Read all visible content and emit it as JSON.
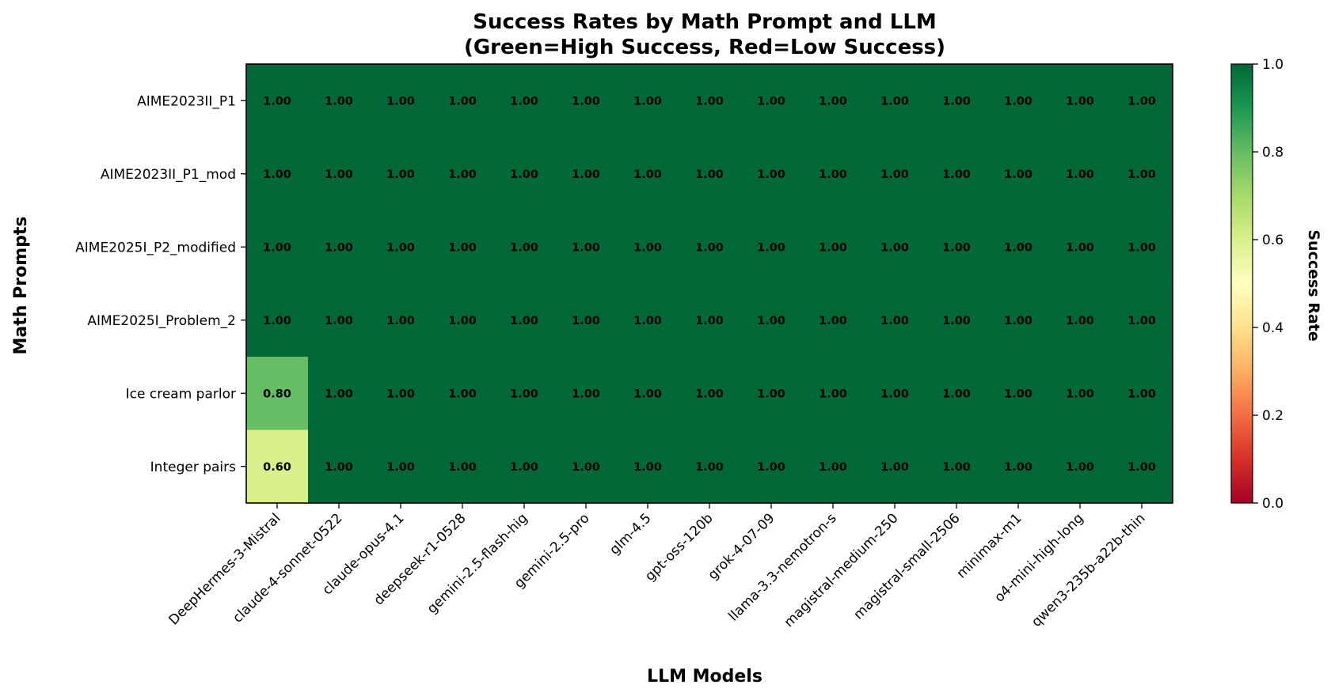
{
  "chart_data": {
    "type": "heatmap",
    "title_line1": "Success Rates by Math Prompt and LLM",
    "title_line2": "(Green=High Success, Red=Low Success)",
    "xlabel": "LLM Models",
    "ylabel": "Math Prompts",
    "x_categories": [
      "DeepHermes-3-Mistral",
      "claude-4-sonnet-0522",
      "claude-opus-4.1",
      "deepseek-r1-0528",
      "gemini-2.5-flash-hig",
      "gemini-2.5-pro",
      "glm-4.5",
      "gpt-oss-120b",
      "grok-4-07-09",
      "llama-3.3-nemotron-s",
      "magistral-medium-250",
      "magistral-small-2506",
      "minimax-m1",
      "o4-mini-high-long",
      "qwen3-235b-a22b-thin"
    ],
    "y_categories": [
      "AIME2023II_P1",
      "AIME2023II_P1_mod",
      "AIME2025I_P2_modified",
      "AIME2025I_Problem_2",
      "Ice cream parlor",
      "Integer pairs"
    ],
    "values": [
      [
        1.0,
        1.0,
        1.0,
        1.0,
        1.0,
        1.0,
        1.0,
        1.0,
        1.0,
        1.0,
        1.0,
        1.0,
        1.0,
        1.0,
        1.0
      ],
      [
        1.0,
        1.0,
        1.0,
        1.0,
        1.0,
        1.0,
        1.0,
        1.0,
        1.0,
        1.0,
        1.0,
        1.0,
        1.0,
        1.0,
        1.0
      ],
      [
        1.0,
        1.0,
        1.0,
        1.0,
        1.0,
        1.0,
        1.0,
        1.0,
        1.0,
        1.0,
        1.0,
        1.0,
        1.0,
        1.0,
        1.0
      ],
      [
        1.0,
        1.0,
        1.0,
        1.0,
        1.0,
        1.0,
        1.0,
        1.0,
        1.0,
        1.0,
        1.0,
        1.0,
        1.0,
        1.0,
        1.0
      ],
      [
        0.8,
        1.0,
        1.0,
        1.0,
        1.0,
        1.0,
        1.0,
        1.0,
        1.0,
        1.0,
        1.0,
        1.0,
        1.0,
        1.0,
        1.0
      ],
      [
        0.6,
        1.0,
        1.0,
        1.0,
        1.0,
        1.0,
        1.0,
        1.0,
        1.0,
        1.0,
        1.0,
        1.0,
        1.0,
        1.0,
        1.0
      ]
    ],
    "value_format_decimals": 2,
    "colormap": "RdYlGn",
    "vmin": 0.0,
    "vmax": 1.0,
    "colorbar": {
      "label": "Success Rate",
      "ticks": [
        "0.0",
        "0.2",
        "0.4",
        "0.6",
        "0.8",
        "1.0"
      ],
      "tick_values": [
        0.0,
        0.2,
        0.4,
        0.6,
        0.8,
        1.0
      ]
    },
    "colormap_stops": [
      {
        "v": 0.0,
        "color": "#a50026"
      },
      {
        "v": 0.1,
        "color": "#d73027"
      },
      {
        "v": 0.2,
        "color": "#f46d43"
      },
      {
        "v": 0.3,
        "color": "#fdae61"
      },
      {
        "v": 0.4,
        "color": "#fee08b"
      },
      {
        "v": 0.5,
        "color": "#ffffbf"
      },
      {
        "v": 0.6,
        "color": "#d9ef8b"
      },
      {
        "v": 0.7,
        "color": "#a6d96a"
      },
      {
        "v": 0.8,
        "color": "#66bd63"
      },
      {
        "v": 0.9,
        "color": "#1a9850"
      },
      {
        "v": 1.0,
        "color": "#006837"
      }
    ],
    "grid": false
  }
}
